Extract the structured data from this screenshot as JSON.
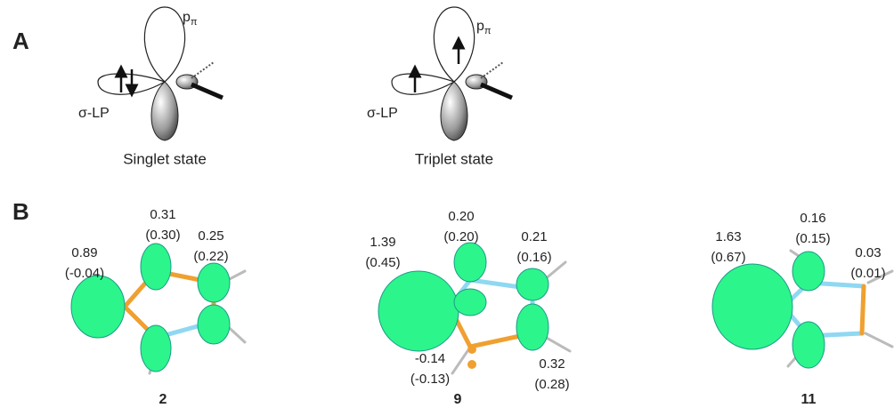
{
  "panel_a": {
    "label": "A",
    "states": [
      {
        "p_label": "p",
        "p_sub": "π",
        "lp_label": "σ-LP",
        "caption": "Singlet state"
      },
      {
        "p_label": "p",
        "p_sub": "π",
        "lp_label": "σ-LP",
        "caption": "Triplet state"
      }
    ]
  },
  "panel_b": {
    "label": "B",
    "molecules": [
      {
        "id": "2",
        "annotations": [
          {
            "value": "0.89",
            "paren": "(-0.04)"
          },
          {
            "value": "0.31",
            "paren": "(0.30)"
          },
          {
            "value": "0.25",
            "paren": "(0.22)"
          }
        ]
      },
      {
        "id": "9",
        "annotations": [
          {
            "value": "1.39",
            "paren": "(0.45)"
          },
          {
            "value": "0.20",
            "paren": "(0.20)"
          },
          {
            "value": "0.21",
            "paren": "(0.16)"
          },
          {
            "value": "-0.14",
            "paren": "(-0.13)"
          },
          {
            "value": "0.32",
            "paren": "(0.28)"
          }
        ]
      },
      {
        "id": "11",
        "annotations": [
          {
            "value": "1.63",
            "paren": "(0.67)"
          },
          {
            "value": "0.16",
            "paren": "(0.15)"
          },
          {
            "value": "0.03",
            "paren": "(0.01)"
          }
        ]
      }
    ]
  }
}
